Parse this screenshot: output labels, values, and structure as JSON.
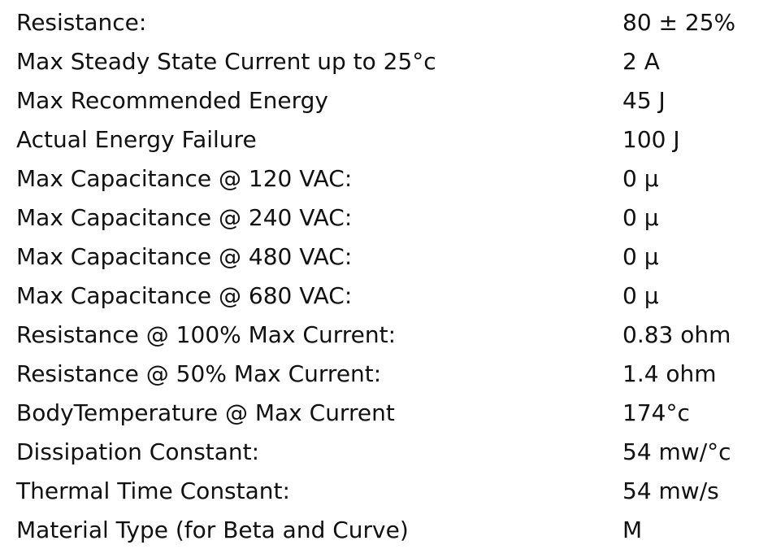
{
  "table": {
    "rows": [
      [
        "Resistance:",
        "80 ± 25%"
      ],
      [
        "Max Steady State Current up to 25°c",
        "2 A"
      ],
      [
        "Max Recommended Energy",
        "45 J"
      ],
      [
        "Actual Energy Failure",
        "100 J"
      ],
      [
        "Max Capacitance @ 120 VAC:",
        "0 μ"
      ],
      [
        "Max Capacitance @ 240 VAC:",
        "0 μ"
      ],
      [
        "Max Capacitance @ 480 VAC:",
        "0 μ"
      ],
      [
        "Max Capacitance @ 680 VAC:",
        "0 μ"
      ],
      [
        "Resistance @ 100% Max Current:",
        "0.83 ohm"
      ],
      [
        "Resistance @ 50% Max Current:",
        "1.4 ohm"
      ],
      [
        "BodyTemperature @ Max Current",
        "174°c"
      ],
      [
        "Dissipation Constant:",
        "54 mw/°c"
      ],
      [
        "Thermal Time Constant:",
        "54 mw/s"
      ],
      [
        "Material Type (for Beta and Curve)",
        "M"
      ]
    ]
  }
}
